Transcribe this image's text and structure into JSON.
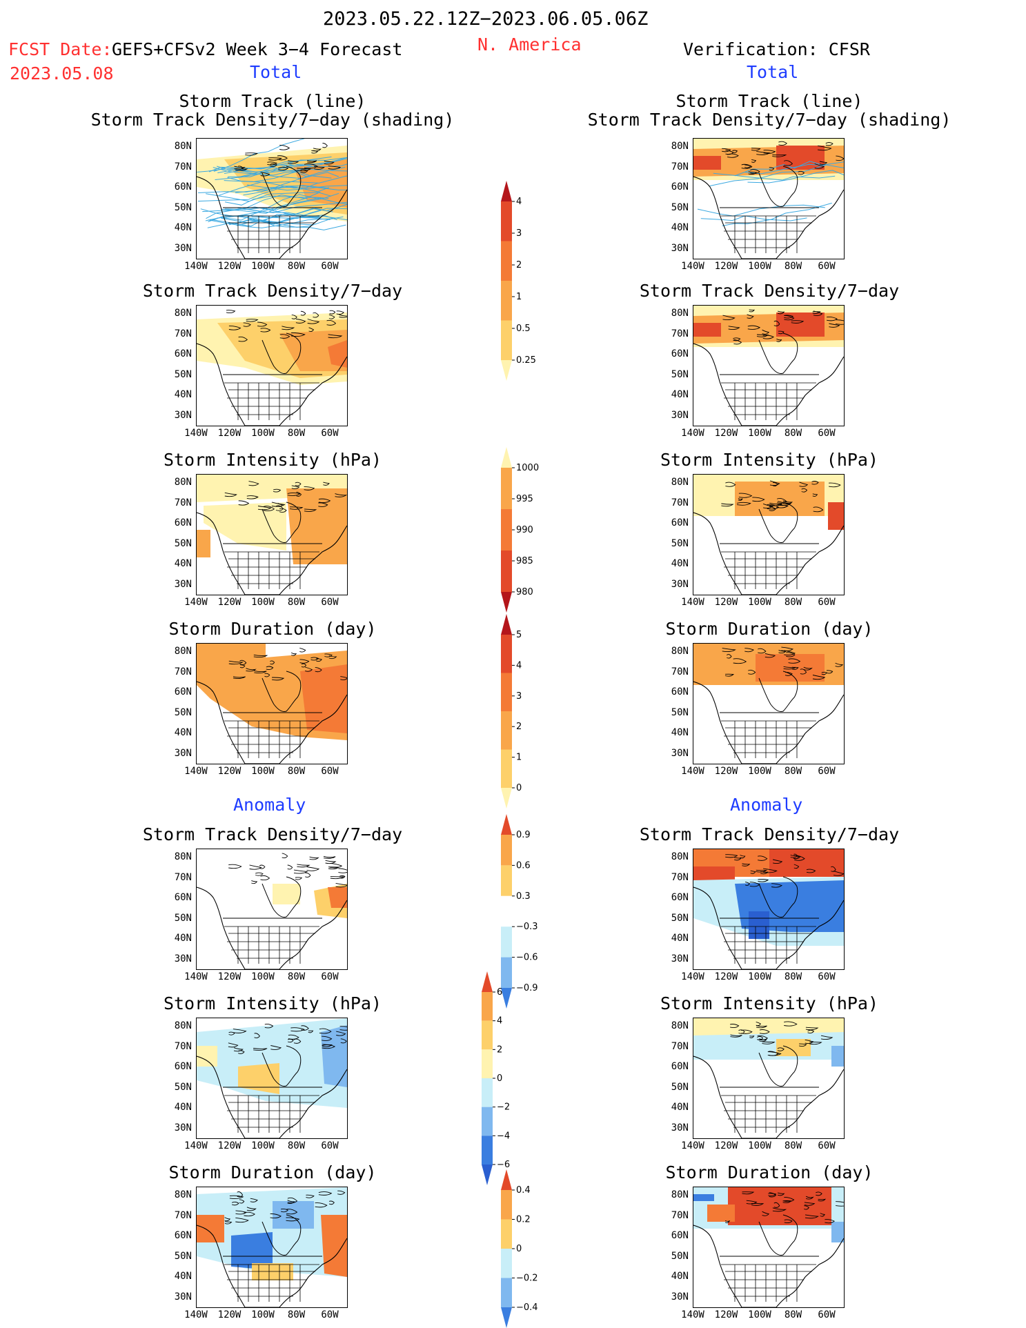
{
  "header": {
    "period": "2023.05.22.12Z−2023.06.05.06Z",
    "fcst_date_label": "FCST Date:",
    "fcst_date": "2023.05.08",
    "model": "GEFS+CFSv2 Week 3−4 Forecast",
    "region": "N. America",
    "verification": "Verification: CFSR"
  },
  "colors": {
    "red_text": "#ff3030",
    "blue_text": "#1e3cff"
  },
  "sections": {
    "total": "Total",
    "anomaly": "Anomaly"
  },
  "titles": {
    "storm_track_line": "Storm Track (line)",
    "storm_track_shading": "Storm Track Density/7−day (shading)",
    "density": "Storm Track Density/7−day",
    "intensity": "Storm Intensity (hPa)",
    "duration": "Storm Duration (day)"
  },
  "axes": {
    "lat": [
      "80N",
      "70N",
      "60N",
      "50N",
      "40N",
      "30N"
    ],
    "lon": [
      "140W",
      "120W",
      "100W",
      "80W",
      "60W"
    ]
  },
  "colorbars": {
    "density_total": [
      "4",
      "3",
      "2",
      "1",
      "0.5",
      "0.25"
    ],
    "intensity_total": [
      "1000",
      "995",
      "990",
      "985",
      "980"
    ],
    "duration_total": [
      "5",
      "4",
      "3",
      "2",
      "1",
      "0"
    ],
    "density_anom": [
      "0.9",
      "0.6",
      "0.3",
      "−0.3",
      "−0.6",
      "−0.9"
    ],
    "intensity_anom": [
      "6",
      "4",
      "2",
      "0",
      "−2",
      "−4",
      "−6"
    ],
    "duration_anom": [
      "0.4",
      "0.2",
      "0",
      "−0.2",
      "−0.4"
    ]
  }
}
